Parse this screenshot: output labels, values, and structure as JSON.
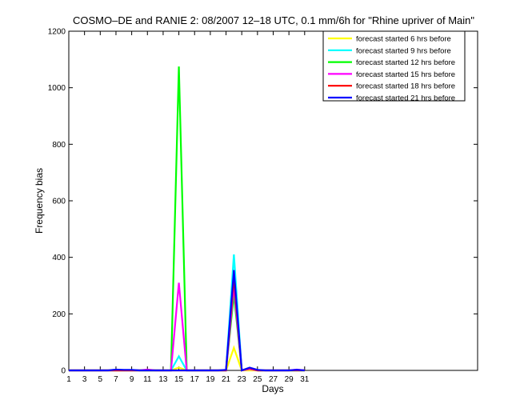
{
  "chart_data": {
    "type": "line",
    "title": "COSMO–DE and RANIE 2: 08/2007 12–18 UTC, 0.1 mm/6h for \"Rhine upriver of Main\"",
    "xlabel": "Days",
    "ylabel": "Frequency bias",
    "xlim": [
      1,
      53
    ],
    "ylim": [
      0,
      1200
    ],
    "xticks": [
      1,
      3,
      5,
      7,
      9,
      11,
      13,
      15,
      17,
      19,
      21,
      23,
      25,
      27,
      29,
      31
    ],
    "yticks": [
      0,
      200,
      400,
      600,
      800,
      1000,
      1200
    ],
    "grid": false,
    "legend_position": "top-right",
    "x": [
      1,
      2,
      3,
      4,
      5,
      6,
      7,
      8,
      9,
      10,
      11,
      12,
      13,
      14,
      15,
      16,
      17,
      18,
      19,
      20,
      21,
      22,
      23,
      24,
      25,
      26,
      27,
      28,
      29,
      30,
      31
    ],
    "series": [
      {
        "name": "forecast started 6 hrs before",
        "color": "#ffff00",
        "values": [
          0,
          0,
          0,
          0,
          0,
          0,
          0,
          0,
          0,
          0,
          0,
          0,
          0,
          0,
          10,
          0,
          0,
          0,
          0,
          0,
          0,
          80,
          0,
          0,
          0,
          0,
          0,
          0,
          0,
          0,
          0
        ]
      },
      {
        "name": "forecast started 9 hrs before",
        "color": "#00ffff",
        "values": [
          0,
          0,
          0,
          0,
          0,
          0,
          0,
          0,
          0,
          0,
          0,
          0,
          0,
          0,
          50,
          0,
          0,
          0,
          0,
          0,
          0,
          410,
          0,
          5,
          0,
          0,
          0,
          0,
          0,
          0,
          0
        ]
      },
      {
        "name": "forecast started 12 hrs before",
        "color": "#00ff00",
        "values": [
          0,
          0,
          0,
          0,
          0,
          0,
          0,
          0,
          0,
          0,
          0,
          0,
          0,
          0,
          1075,
          0,
          0,
          0,
          0,
          0,
          0,
          270,
          0,
          5,
          0,
          0,
          0,
          0,
          0,
          0,
          0
        ]
      },
      {
        "name": "forecast started 15 hrs before",
        "color": "#ff00ff",
        "values": [
          0,
          0,
          0,
          0,
          0,
          0,
          0,
          0,
          0,
          0,
          3,
          0,
          0,
          0,
          310,
          0,
          0,
          0,
          0,
          0,
          0,
          300,
          0,
          5,
          0,
          0,
          0,
          0,
          0,
          3,
          0
        ]
      },
      {
        "name": "forecast started 18 hrs before",
        "color": "#ff0000",
        "values": [
          0,
          0,
          0,
          0,
          0,
          0,
          0,
          0,
          0,
          0,
          0,
          0,
          0,
          0,
          0,
          0,
          0,
          0,
          0,
          0,
          0,
          330,
          0,
          8,
          0,
          0,
          0,
          0,
          0,
          0,
          0
        ]
      },
      {
        "name": "forecast started 21 hrs before",
        "color": "#0000ff",
        "values": [
          0,
          0,
          0,
          0,
          0,
          0,
          3,
          2,
          2,
          0,
          0,
          0,
          0,
          0,
          0,
          0,
          0,
          0,
          0,
          0,
          2,
          355,
          0,
          10,
          2,
          0,
          0,
          0,
          0,
          2,
          0
        ]
      }
    ]
  }
}
